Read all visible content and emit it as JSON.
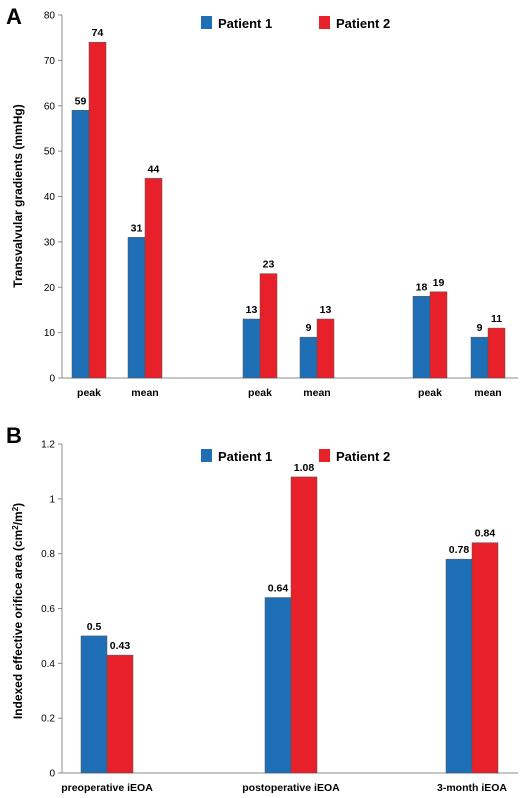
{
  "colors": {
    "patient1": "#1f6fb7",
    "patient2": "#e8202a"
  },
  "chart_data": [
    {
      "panel_label": "A",
      "type": "bar",
      "ylabel": "Transvalvular gradients (mmHg)",
      "ylim": [
        0,
        80
      ],
      "yticks": [
        0,
        10,
        20,
        30,
        40,
        50,
        60,
        70,
        80
      ],
      "legend": {
        "position": "top-center",
        "entries": [
          "Patient 1",
          "Patient 2"
        ]
      },
      "categories": [
        "peak",
        "mean",
        "peak",
        "mean",
        "peak",
        "mean"
      ],
      "series": [
        {
          "name": "Patient 1",
          "values": [
            59,
            31,
            13,
            9,
            18,
            9
          ]
        },
        {
          "name": "Patient 2",
          "values": [
            74,
            44,
            23,
            13,
            19,
            11
          ]
        }
      ]
    },
    {
      "panel_label": "B",
      "type": "bar",
      "ylabel": "Indexed effective orifice area (cm²/m²)",
      "ylim": [
        0,
        1.2
      ],
      "yticks": [
        "0",
        "0.2",
        "0.4",
        "0.6",
        "0.8",
        "1",
        "1.2"
      ],
      "legend": {
        "position": "top-center",
        "entries": [
          "Patient 1",
          "Patient 2"
        ]
      },
      "categories": [
        "preoperative iEOA",
        "postoperative iEOA",
        "3-month  iEOA"
      ],
      "series": [
        {
          "name": "Patient 1",
          "values": [
            0.5,
            0.64,
            0.78
          ]
        },
        {
          "name": "Patient 2",
          "values": [
            0.43,
            1.08,
            0.84
          ]
        }
      ]
    }
  ]
}
